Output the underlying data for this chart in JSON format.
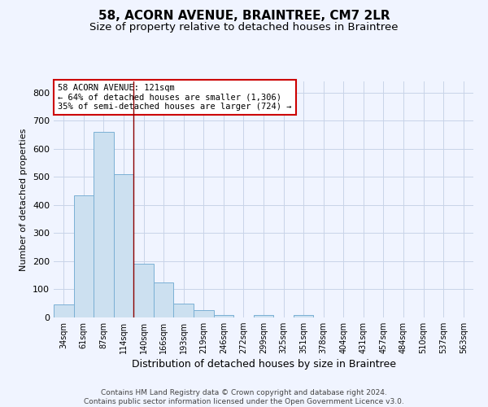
{
  "title1": "58, ACORN AVENUE, BRAINTREE, CM7 2LR",
  "title2": "Size of property relative to detached houses in Braintree",
  "xlabel": "Distribution of detached houses by size in Braintree",
  "ylabel": "Number of detached properties",
  "categories": [
    "34sqm",
    "61sqm",
    "87sqm",
    "114sqm",
    "140sqm",
    "166sqm",
    "193sqm",
    "219sqm",
    "246sqm",
    "272sqm",
    "299sqm",
    "325sqm",
    "351sqm",
    "378sqm",
    "404sqm",
    "431sqm",
    "457sqm",
    "484sqm",
    "510sqm",
    "537sqm",
    "563sqm"
  ],
  "values": [
    45,
    435,
    660,
    510,
    190,
    125,
    50,
    25,
    8,
    0,
    8,
    0,
    8,
    0,
    0,
    0,
    0,
    0,
    0,
    0,
    0
  ],
  "bar_color": "#cce0f0",
  "bar_edge_color": "#7ab0d4",
  "bar_linewidth": 0.7,
  "red_line_x": 3.5,
  "annotation_text": "58 ACORN AVENUE: 121sqm\n← 64% of detached houses are smaller (1,306)\n35% of semi-detached houses are larger (724) →",
  "annotation_box_color": "#ffffff",
  "annotation_box_edge": "#cc0000",
  "red_line_color": "#8b0000",
  "grid_color": "#c8d4e8",
  "ylim": [
    0,
    840
  ],
  "yticks": [
    0,
    100,
    200,
    300,
    400,
    500,
    600,
    700,
    800
  ],
  "footnote": "Contains HM Land Registry data © Crown copyright and database right 2024.\nContains public sector information licensed under the Open Government Licence v3.0.",
  "bg_color": "#f0f4ff",
  "title1_fontsize": 11,
  "title2_fontsize": 9.5,
  "xlabel_fontsize": 9,
  "ylabel_fontsize": 8,
  "footnote_fontsize": 6.5,
  "tick_fontsize": 7,
  "annotation_fontsize": 7.5
}
